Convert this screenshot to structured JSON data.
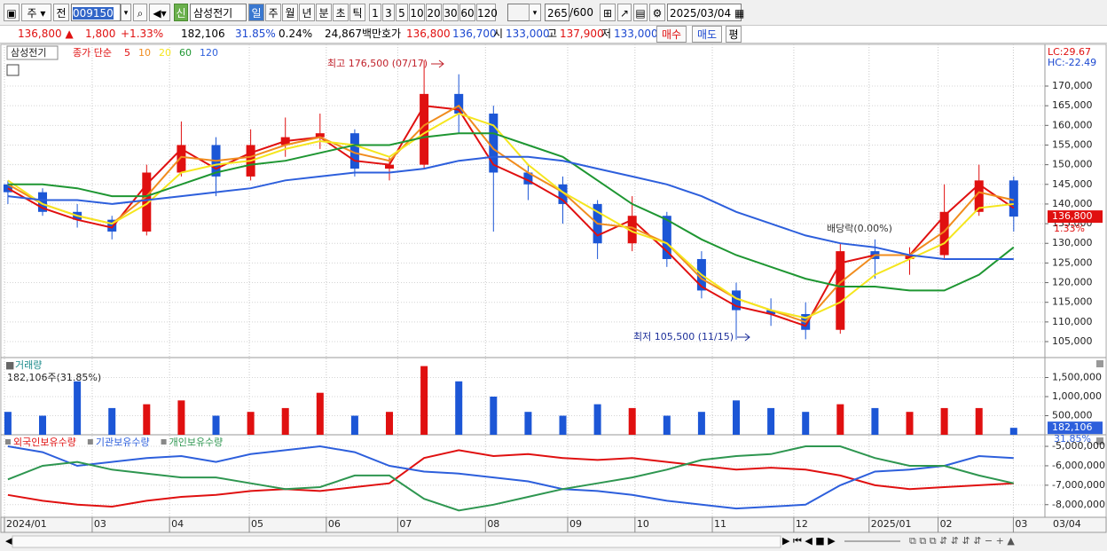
{
  "toolbar": {
    "market": "주",
    "prev": "전",
    "code": "009150",
    "badge": "신",
    "name": "삼성전기",
    "periods": [
      "일",
      "주",
      "월",
      "년",
      "분",
      "초",
      "틱"
    ],
    "intervals": [
      "1",
      "3",
      "5",
      "10",
      "20",
      "30",
      "60",
      "120"
    ],
    "count": "265",
    "max": "/600",
    "date": "2025/03/04"
  },
  "quote": {
    "price": "136,800 ▲",
    "change": "1,800",
    "rate": "+1.33%",
    "volume": "182,106",
    "vol_rate": "31.85%",
    "turnover": "0.24%",
    "amount": "24,867백만",
    "ask_label": "호가",
    "ask": "136,800",
    "bid": "136,700",
    "open_label": "시",
    "open": "133,000",
    "high_label": "고",
    "high": "137,900",
    "low_label": "저",
    "low": "133,000",
    "buy": "매수",
    "sell": "매도",
    "eval": "평"
  },
  "chart_data": [
    {
      "type": "candlestick",
      "title": "삼성전기",
      "ma_label": "종가 단순",
      "open": [
        145000,
        143000,
        138000,
        136000,
        133000,
        148000,
        155000,
        147000,
        155000,
        157000,
        158000,
        149000,
        150000,
        168000,
        163000,
        148000,
        145000,
        140000,
        130000,
        137000,
        126000,
        118000,
        113000,
        112000,
        108000,
        128000,
        126000,
        127000,
        138000,
        146000
      ],
      "high": [
        146000,
        144000,
        140000,
        137000,
        150000,
        161000,
        157000,
        159000,
        162000,
        163000,
        159000,
        152000,
        176500,
        173000,
        165000,
        150000,
        147000,
        141000,
        142000,
        138000,
        128000,
        120000,
        116000,
        115000,
        130000,
        131000,
        129000,
        145000,
        150000,
        147000
      ],
      "low": [
        140000,
        137000,
        134000,
        131000,
        132000,
        147000,
        142000,
        146000,
        152000,
        154000,
        147000,
        146000,
        149000,
        158000,
        133000,
        141000,
        135000,
        126000,
        128000,
        124000,
        116000,
        105500,
        109000,
        105600,
        107000,
        121000,
        122000,
        126000,
        137000,
        133000
      ],
      "close": [
        143000,
        138000,
        136000,
        133000,
        148000,
        155000,
        147000,
        155000,
        157000,
        158000,
        149000,
        150000,
        168000,
        163000,
        148000,
        145000,
        140000,
        130000,
        137000,
        126000,
        118000,
        113000,
        112000,
        108000,
        128000,
        126000,
        127000,
        138000,
        146000,
        136800
      ],
      "series": [
        {
          "name": "5",
          "color": "#e01010",
          "values": [
            144000,
            139000,
            136000,
            134000,
            145000,
            154000,
            149000,
            153000,
            156000,
            157000,
            151000,
            150000,
            165000,
            164000,
            150000,
            146000,
            141000,
            132000,
            136000,
            128000,
            119000,
            114000,
            112000,
            109000,
            125000,
            127000,
            127000,
            137000,
            145000,
            139000
          ]
        },
        {
          "name": "10",
          "color": "#f08c1e",
          "values": [
            145000,
            140000,
            137000,
            135000,
            142000,
            152000,
            151000,
            152000,
            155000,
            157000,
            153000,
            151000,
            160000,
            165000,
            154000,
            148000,
            143000,
            135000,
            134000,
            130000,
            121000,
            116000,
            113000,
            110000,
            120000,
            127000,
            127000,
            133000,
            143000,
            141000
          ]
        },
        {
          "name": "20",
          "color": "#f5e61e",
          "values": [
            146000,
            140000,
            137000,
            135000,
            140000,
            148000,
            150000,
            151000,
            154000,
            156000,
            155000,
            152000,
            158000,
            163000,
            160000,
            150000,
            143000,
            138000,
            133000,
            130000,
            122000,
            116000,
            113000,
            111000,
            115000,
            122000,
            126000,
            130000,
            139000,
            140000
          ]
        },
        {
          "name": "60",
          "color": "#1e9632",
          "values": [
            145000,
            145000,
            144000,
            142000,
            142000,
            145000,
            148000,
            150000,
            151000,
            153000,
            155000,
            155000,
            157000,
            158000,
            158000,
            155000,
            152000,
            146000,
            140000,
            136000,
            131000,
            127000,
            124000,
            121000,
            119000,
            119000,
            118000,
            118000,
            122000,
            129000
          ]
        },
        {
          "name": "120",
          "color": "#2d5fdc",
          "values": [
            142000,
            141000,
            141000,
            140000,
            141000,
            142000,
            143000,
            144000,
            146000,
            147000,
            148000,
            148000,
            149000,
            151000,
            152000,
            152000,
            151000,
            149000,
            147000,
            145000,
            142000,
            138000,
            135000,
            132000,
            130000,
            129000,
            127000,
            126000,
            126000,
            126000
          ]
        }
      ],
      "up_color": "#e01010",
      "down_color": "#1c56d6",
      "xlim": [
        -0.1,
        29.9
      ],
      "ylim": [
        100940,
        180610
      ],
      "yticks": [
        {
          "value": 105000,
          "label": "105,000"
        },
        {
          "value": 110000,
          "label": "110,000"
        },
        {
          "value": 115000,
          "label": "115,000"
        },
        {
          "value": 120000,
          "label": "120,000"
        },
        {
          "value": 125000,
          "label": "125,000"
        },
        {
          "value": 130000,
          "label": "130,000"
        },
        {
          "value": 135000,
          "label": "135,000"
        },
        {
          "value": 140000,
          "label": "140,000"
        },
        {
          "value": 145000,
          "label": "145,000"
        },
        {
          "value": 150000,
          "label": "150,000"
        },
        {
          "value": 155000,
          "label": "155,000"
        },
        {
          "value": 160000,
          "label": "160,000"
        },
        {
          "value": 165000,
          "label": "165,000"
        },
        {
          "value": 170000,
          "label": "170,000"
        }
      ],
      "grid": true,
      "annotations": {
        "high": "최고 176,500 (07/17)",
        "low": "최저 105,500 (11/15)",
        "dividend": "배당락(0.00%)"
      },
      "lc": "LC:29.67",
      "hc": "HC:-22.49",
      "last_tag": "136,800",
      "last_pct": "1.33%"
    },
    {
      "type": "bar",
      "title": "거래량",
      "subtitle": "182,106주(31.85%)",
      "values": [
        600000,
        500000,
        1400000,
        700000,
        800000,
        900000,
        500000,
        600000,
        700000,
        1100000,
        500000,
        600000,
        1800000,
        1400000,
        1000000,
        600000,
        500000,
        800000,
        700000,
        500000,
        600000,
        900000,
        700000,
        600000,
        800000,
        700000,
        600000,
        700000,
        700000,
        182106
      ],
      "xlim": [
        -0.1,
        29.9
      ],
      "ylim": [
        0,
        2000000
      ],
      "yticks": [
        {
          "value": 500000,
          "label": "500,000"
        },
        {
          "value": 1000000,
          "label": "1,000,000"
        },
        {
          "value": 1500000,
          "label": "1,500,000"
        }
      ],
      "grid": true,
      "tag_color": "#2d5fdc",
      "last_tag": "182,106",
      "last_pct": "31.85%"
    },
    {
      "type": "line",
      "series": [
        {
          "name": "외국인보유수량",
          "color": "#e01010",
          "values": [
            -7500000,
            -7800000,
            -8000000,
            -8100000,
            -7800000,
            -7600000,
            -7500000,
            -7300000,
            -7200000,
            -7300000,
            -7100000,
            -6900000,
            -5600000,
            -5200000,
            -5500000,
            -5400000,
            -5600000,
            -5700000,
            -5600000,
            -5800000,
            -6000000,
            -6200000,
            -6100000,
            -6200000,
            -6500000,
            -7000000,
            -7200000,
            -7100000,
            -7000000,
            -6900000
          ]
        },
        {
          "name": "기관보유수량",
          "color": "#2d5fdc",
          "values": [
            -5000000,
            -5300000,
            -6000000,
            -5800000,
            -5600000,
            -5500000,
            -5800000,
            -5400000,
            -5200000,
            -5000000,
            -5300000,
            -6000000,
            -6300000,
            -6400000,
            -6600000,
            -6800000,
            -7200000,
            -7300000,
            -7500000,
            -7800000,
            -8000000,
            -8200000,
            -8100000,
            -8000000,
            -7000000,
            -6300000,
            -6200000,
            -6000000,
            -5500000,
            -5600000
          ]
        },
        {
          "name": "개인보유수량",
          "color": "#2e9650",
          "values": [
            -6700000,
            -6000000,
            -5800000,
            -6200000,
            -6400000,
            -6600000,
            -6600000,
            -6900000,
            -7200000,
            -7100000,
            -6500000,
            -6500000,
            -7700000,
            -8300000,
            -8000000,
            -7600000,
            -7200000,
            -6900000,
            -6600000,
            -6200000,
            -5700000,
            -5500000,
            -5400000,
            -5000000,
            -5000000,
            -5600000,
            -6000000,
            -6000000,
            -6500000,
            -6900000
          ]
        }
      ],
      "xlim": [
        -0.1,
        29.9
      ],
      "ylim": [
        -8650000,
        -4450000
      ],
      "yticks": [
        {
          "value": -5000000,
          "label": "-5,000,000"
        },
        {
          "value": -6000000,
          "label": "-6,000,000"
        },
        {
          "value": -7000000,
          "label": "-7,000,000"
        },
        {
          "value": -8000000,
          "label": "-8,000,000"
        }
      ],
      "xticks": [
        {
          "value": -0.1,
          "label": "2024/01"
        },
        {
          "value": 2.43,
          "label": "03"
        },
        {
          "value": 4.66,
          "label": "04"
        },
        {
          "value": 6.96,
          "label": "05"
        },
        {
          "value": 9.18,
          "label": "06"
        },
        {
          "value": 11.24,
          "label": "07"
        },
        {
          "value": 13.77,
          "label": "08"
        },
        {
          "value": 16.14,
          "label": "09"
        },
        {
          "value": 18.08,
          "label": "10"
        },
        {
          "value": 20.31,
          "label": "11"
        },
        {
          "value": 22.66,
          "label": "12"
        },
        {
          "value": 24.83,
          "label": "2025/01"
        },
        {
          "value": 26.82,
          "label": "02"
        },
        {
          "value": 28.99,
          "label": "03"
        }
      ],
      "x_end_label": "03/04",
      "grid": true
    }
  ]
}
